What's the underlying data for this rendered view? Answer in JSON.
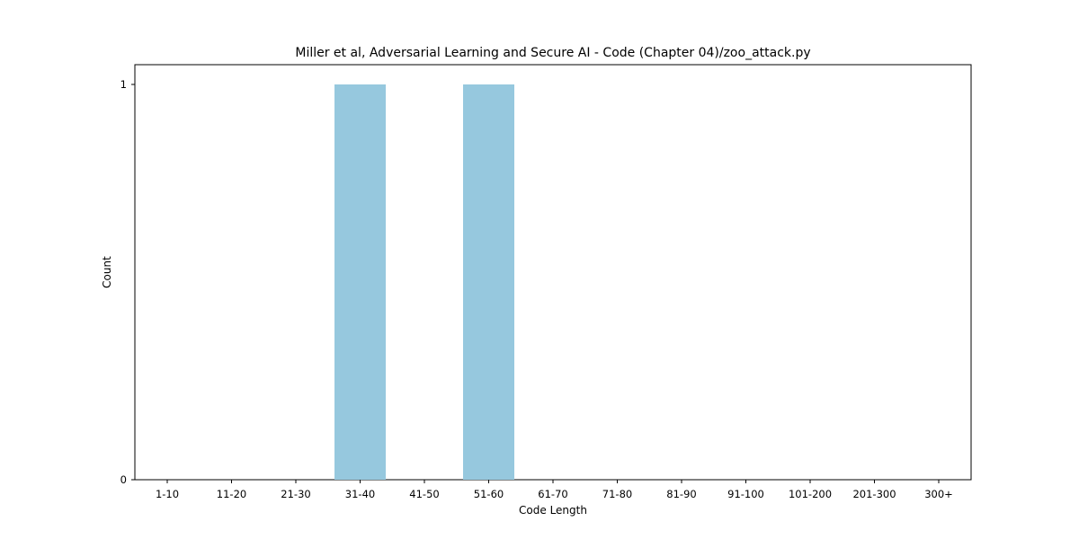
{
  "chart_data": {
    "type": "bar",
    "title": "Miller et al, Adversarial Learning and Secure AI - Code (Chapter 04)/zoo_attack.py",
    "xlabel": "Code Length",
    "ylabel": "Count",
    "categories": [
      "1-10",
      "11-20",
      "21-30",
      "31-40",
      "41-50",
      "51-60",
      "61-70",
      "71-80",
      "81-90",
      "91-100",
      "101-200",
      "201-300",
      "300+"
    ],
    "values": [
      0,
      0,
      0,
      1,
      0,
      1,
      0,
      0,
      0,
      0,
      0,
      0,
      0
    ],
    "ylim": [
      0,
      1
    ],
    "yticks": [
      0,
      1
    ],
    "bar_color": "#96c8de",
    "grid": false,
    "legend": false
  }
}
